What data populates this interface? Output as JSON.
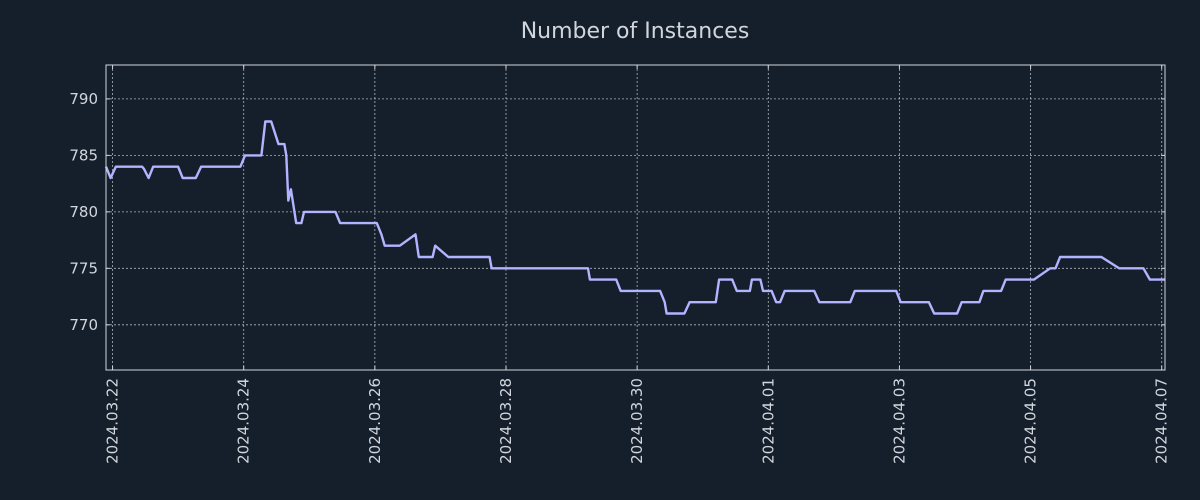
{
  "colors": {
    "background": "#151f2c",
    "text": "#d2d6dc",
    "grid": "#c8ccd2",
    "series": "#b1b4ff"
  },
  "chart_data": {
    "type": "line",
    "title": "Number of Instances",
    "xlabel": "",
    "ylabel": "",
    "grid": true,
    "legend": "none",
    "xlim": [
      -0.1,
      16.05
    ],
    "ylim": [
      766,
      793
    ],
    "x_tick_positions": [
      0,
      2,
      4,
      6,
      8,
      10,
      12,
      14,
      16
    ],
    "x_tick_labels": [
      "2024.03.22",
      "2024.03.24",
      "2024.03.26",
      "2024.03.28",
      "2024.03.30",
      "2024.04.01",
      "2024.04.03",
      "2024.04.05",
      "2024.04.07"
    ],
    "y_ticks": [
      770,
      775,
      780,
      785,
      790
    ],
    "series": [
      {
        "name": "Number of Instances",
        "x": [
          -0.1,
          -0.03,
          0.05,
          0.45,
          0.48,
          0.55,
          0.62,
          1.0,
          1.07,
          1.15,
          1.27,
          1.35,
          1.42,
          1.95,
          2.02,
          2.27,
          2.33,
          2.38,
          2.42,
          2.53,
          2.55,
          2.58,
          2.62,
          2.65,
          2.68,
          2.72,
          2.8,
          2.82,
          2.88,
          2.92,
          2.98,
          3.4,
          3.47,
          3.55,
          4.03,
          4.1,
          4.15,
          4.32,
          4.38,
          4.62,
          4.67,
          4.88,
          4.92,
          5.12,
          5.18,
          5.32,
          5.38,
          5.75,
          5.78,
          6.18,
          6.22,
          6.5,
          6.55,
          6.65,
          6.75,
          6.85,
          7.15,
          7.25,
          7.28,
          7.35,
          7.45,
          7.52,
          7.68,
          7.75,
          8.05,
          8.1,
          8.35,
          8.42,
          8.45,
          8.48,
          8.72,
          8.8,
          8.88,
          9.2,
          9.25,
          9.45,
          9.52,
          9.72,
          9.75,
          9.88,
          9.92,
          9.98,
          10.05,
          10.12,
          10.18,
          10.25,
          10.32,
          10.7,
          10.78,
          10.95,
          11.25,
          11.32,
          11.45,
          11.95,
          12.02,
          12.45,
          12.53,
          12.88,
          12.95,
          13.22,
          13.28,
          13.55,
          13.62,
          13.95,
          14.05,
          14.3,
          14.38,
          14.45,
          14.9,
          14.98,
          15.08,
          15.35,
          15.42,
          15.72,
          15.82,
          16.05
        ],
        "y": [
          784,
          783,
          784,
          784,
          783.8,
          783,
          784,
          784,
          783,
          783,
          783,
          784,
          784,
          784,
          785,
          785,
          788,
          788,
          788,
          786,
          786,
          786,
          786,
          785,
          781,
          782,
          779,
          779,
          779,
          780,
          780,
          780,
          779,
          779,
          779,
          778,
          777,
          777,
          777,
          778,
          776,
          776,
          777,
          776,
          776,
          776,
          776,
          776,
          775,
          775,
          775,
          775,
          775,
          775,
          775,
          775,
          775,
          775,
          774,
          774,
          774,
          774,
          774,
          773,
          773,
          773,
          773,
          772,
          771,
          771,
          771,
          772,
          772,
          772,
          774,
          774,
          773,
          773,
          774,
          774,
          773,
          773,
          773,
          772,
          772,
          773,
          773,
          773,
          772,
          772,
          772,
          773,
          773,
          773,
          772,
          772,
          771,
          771,
          772,
          772,
          773,
          773,
          774,
          774,
          774,
          775,
          775,
          776,
          776,
          776,
          776,
          775,
          775,
          775,
          774,
          774
        ]
      }
    ]
  }
}
